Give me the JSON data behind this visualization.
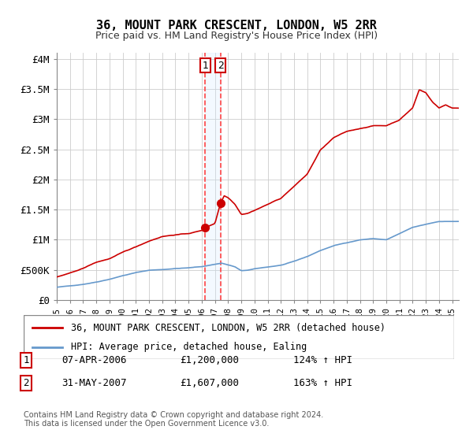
{
  "title": "36, MOUNT PARK CRESCENT, LONDON, W5 2RR",
  "subtitle": "Price paid vs. HM Land Registry's House Price Index (HPI)",
  "hpi_line_color": "#6699cc",
  "price_line_color": "#cc0000",
  "marker_color": "#cc0000",
  "vline_color": "#ff4444",
  "vband_color": "#d0e8ff",
  "purchase1": {
    "date_num": 2006.27,
    "price": 1200000,
    "label": "1"
  },
  "purchase2": {
    "date_num": 2007.42,
    "price": 1607000,
    "label": "2"
  },
  "legend_line1": "36, MOUNT PARK CRESCENT, LONDON, W5 2RR (detached house)",
  "legend_line2": "HPI: Average price, detached house, Ealing",
  "table_rows": [
    {
      "num": "1",
      "date": "07-APR-2006",
      "price": "£1,200,000",
      "pct": "124% ↑ HPI"
    },
    {
      "num": "2",
      "date": "31-MAY-2007",
      "price": "£1,607,000",
      "pct": "163% ↑ HPI"
    }
  ],
  "footnote": "Contains HM Land Registry data © Crown copyright and database right 2024.\nThis data is licensed under the Open Government Licence v3.0.",
  "ylim": [
    0,
    4100000
  ],
  "xlim_start": 1995.0,
  "xlim_end": 2025.5,
  "yticks": [
    0,
    500000,
    1000000,
    1500000,
    2000000,
    2500000,
    3000000,
    3500000,
    4000000
  ],
  "ytick_labels": [
    "£0",
    "£500K",
    "£1M",
    "£1.5M",
    "£2M",
    "£2.5M",
    "£3M",
    "£3.5M",
    "£4M"
  ],
  "xticks": [
    1995,
    1996,
    1997,
    1998,
    1999,
    2000,
    2001,
    2002,
    2003,
    2004,
    2005,
    2006,
    2007,
    2008,
    2009,
    2010,
    2011,
    2012,
    2013,
    2014,
    2015,
    2016,
    2017,
    2018,
    2019,
    2020,
    2021,
    2022,
    2023,
    2024,
    2025
  ]
}
